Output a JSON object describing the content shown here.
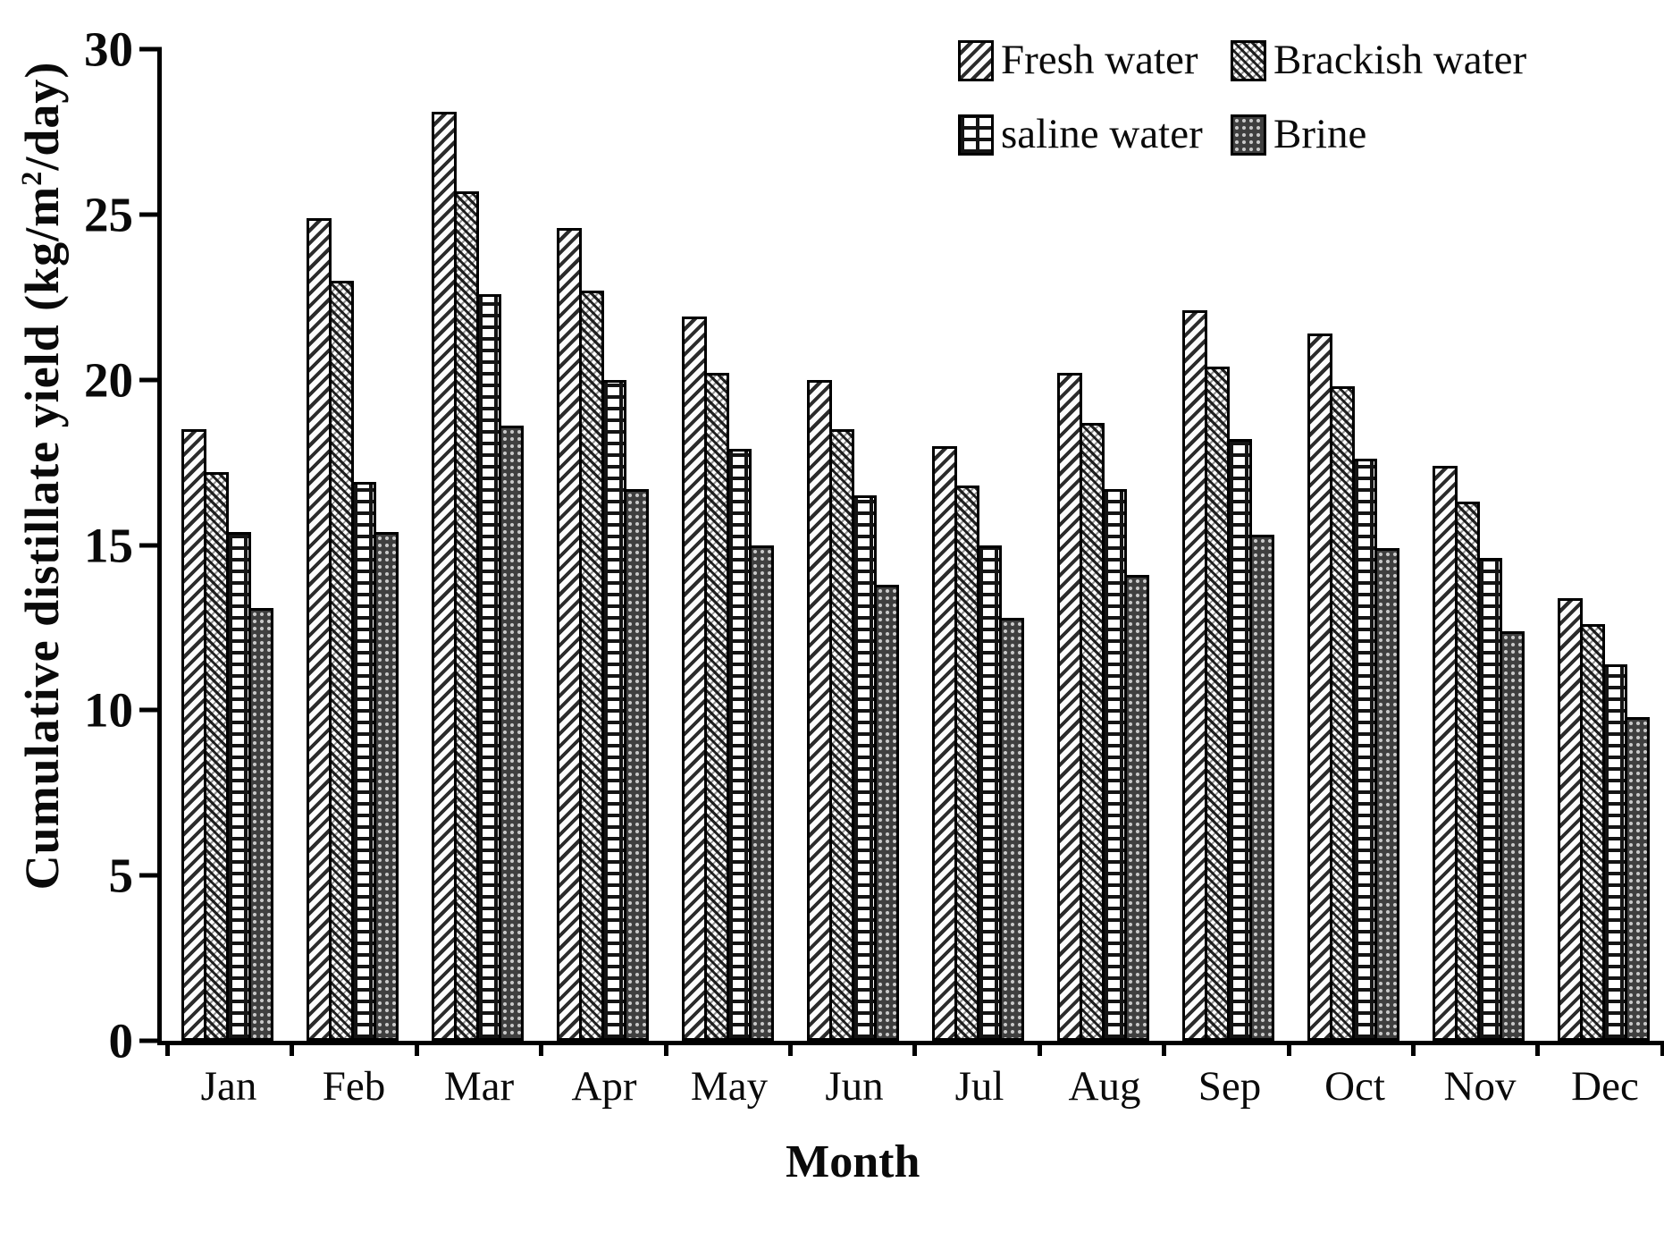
{
  "figure": {
    "background": "#ffffff",
    "ink_color": "#000000"
  },
  "chart_data": {
    "type": "bar",
    "title": "",
    "xlabel": "Month",
    "ylabel_prefix": "Cumulative distillate yield (kg/m",
    "ylabel_sup": "2",
    "ylabel_suffix": "/day)",
    "ylim": [
      0,
      30
    ],
    "yticks": [
      0,
      5,
      10,
      15,
      20,
      25,
      30
    ],
    "grid": false,
    "legend_position": "top-right",
    "categories": [
      "Jan",
      "Feb",
      "Mar",
      "Apr",
      "May",
      "Jun",
      "Jul",
      "Aug",
      "Sep",
      "Oct",
      "Nov",
      "Dec"
    ],
    "series": [
      {
        "name": "Fresh water",
        "pattern": "diagonal-hatch",
        "values": [
          18.5,
          24.9,
          28.1,
          24.6,
          21.9,
          20.0,
          18.0,
          20.2,
          22.1,
          21.4,
          17.4,
          13.4
        ]
      },
      {
        "name": "Brackish water",
        "pattern": "diagonal-crosshatch",
        "values": [
          17.2,
          23.0,
          25.7,
          22.7,
          20.2,
          18.5,
          16.8,
          18.7,
          20.4,
          19.8,
          16.3,
          12.6
        ]
      },
      {
        "name": "saline water",
        "pattern": "brick",
        "values": [
          15.4,
          16.9,
          22.6,
          20.0,
          17.9,
          16.5,
          15.0,
          16.7,
          18.2,
          17.6,
          14.6,
          11.4
        ]
      },
      {
        "name": "Brine",
        "pattern": "dark-dots",
        "values": [
          13.1,
          15.4,
          18.6,
          16.7,
          15.0,
          13.8,
          12.8,
          14.1,
          15.3,
          14.9,
          12.4,
          9.8
        ]
      }
    ],
    "legend": [
      "Fresh water",
      "Brackish water",
      "saline water",
      "Brine"
    ]
  }
}
